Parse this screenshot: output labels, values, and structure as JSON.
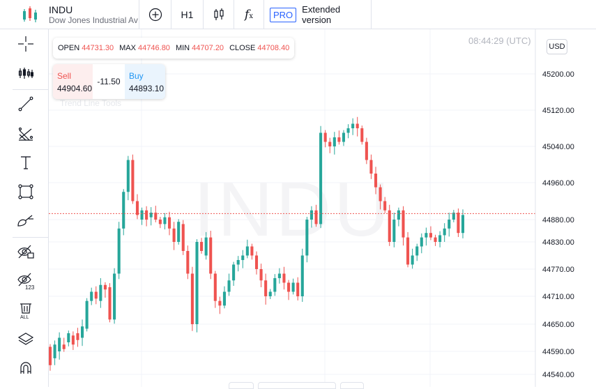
{
  "header": {
    "ticker": "INDU",
    "description": "Dow Jones Industrial Average",
    "timeframe": "H1",
    "pro_badge": "PRO",
    "extended_label": "Extended version"
  },
  "ohlc": {
    "open_label": "OPEN",
    "open": "44731.30",
    "max_label": "MAX",
    "max": "44746.80",
    "min_label": "MIN",
    "min": "44707.20",
    "close_label": "CLOSE",
    "close": "44708.40"
  },
  "trade": {
    "sell_label": "Sell",
    "sell_value": "44904.60",
    "spread": "-11.50",
    "buy_label": "Buy",
    "buy_value": "44893.10"
  },
  "overlay_text": "Trend Line Tools",
  "clock": "08:44:29 (UTC)",
  "currency": "USD",
  "watermark": "INDU",
  "colors": {
    "up": "#26a69a",
    "down": "#ef5350",
    "grid": "#f0f3fa",
    "current_line": "#ef5350"
  },
  "tools": [
    "crosshair-icon",
    "indicators-icon",
    "trend-line-icon",
    "fib-icon",
    "text-icon",
    "rectangle-icon",
    "brush-icon",
    "hide-drawings-icon",
    "hide-indicators-icon",
    "delete-all-icon",
    "layers-icon",
    "magnet-icon"
  ],
  "chart_data": {
    "type": "candlestick",
    "y_ticks": [
      "44540.00",
      "44590.00",
      "44650.00",
      "44710.00",
      "44770.00",
      "44830.00",
      "44880.00",
      "44960.00",
      "45040.00",
      "45120.00",
      "45200.00"
    ],
    "ylim": [
      44535,
      45248
    ],
    "current_price": 44893,
    "candles": [
      [
        44600,
        44560
      ],
      [
        44575,
        44605
      ],
      [
        44590,
        44620
      ],
      [
        44605,
        44595
      ],
      [
        44610,
        44630
      ],
      [
        44625,
        44605
      ],
      [
        44630,
        44615
      ],
      [
        44620,
        44645
      ],
      [
        44640,
        44700
      ],
      [
        44700,
        44720
      ],
      [
        44720,
        44705
      ],
      [
        44700,
        44735
      ],
      [
        44735,
        44725
      ],
      [
        44730,
        44660
      ],
      [
        44660,
        44760
      ],
      [
        44760,
        44860
      ],
      [
        44860,
        44940
      ],
      [
        44940,
        45010
      ],
      [
        45010,
        44920
      ],
      [
        44920,
        44890
      ],
      [
        44880,
        44900
      ],
      [
        44900,
        44880
      ],
      [
        44885,
        44895
      ],
      [
        44895,
        44880
      ],
      [
        44880,
        44870
      ],
      [
        44870,
        44885
      ],
      [
        44885,
        44860
      ],
      [
        44860,
        44830
      ],
      [
        44830,
        44875
      ],
      [
        44870,
        44810
      ],
      [
        44810,
        44760
      ],
      [
        44760,
        44650
      ],
      [
        44650,
        44830
      ],
      [
        44830,
        44810
      ],
      [
        44800,
        44840
      ],
      [
        44840,
        44760
      ],
      [
        44760,
        44700
      ],
      [
        44700,
        44690
      ],
      [
        44690,
        44720
      ],
      [
        44720,
        44745
      ],
      [
        44745,
        44780
      ],
      [
        44780,
        44790
      ],
      [
        44790,
        44800
      ],
      [
        44800,
        44820
      ],
      [
        44820,
        44800
      ],
      [
        44800,
        44770
      ],
      [
        44770,
        44745
      ],
      [
        44745,
        44710
      ],
      [
        44710,
        44720
      ],
      [
        44720,
        44750
      ],
      [
        44750,
        44760
      ],
      [
        44760,
        44740
      ],
      [
        44740,
        44720
      ],
      [
        44720,
        44740
      ],
      [
        44740,
        44710
      ],
      [
        44710,
        44800
      ],
      [
        44800,
        44880
      ],
      [
        44880,
        44900
      ],
      [
        44900,
        44870
      ],
      [
        44870,
        45070
      ],
      [
        45070,
        45050
      ],
      [
        45050,
        45040
      ],
      [
        45040,
        45060
      ],
      [
        45060,
        45050
      ],
      [
        45050,
        45070
      ],
      [
        45070,
        45080
      ],
      [
        45080,
        45090
      ],
      [
        45090,
        45080
      ],
      [
        45080,
        45050
      ],
      [
        45050,
        45010
      ],
      [
        45010,
        44980
      ],
      [
        44980,
        44950
      ],
      [
        44950,
        44920
      ],
      [
        44920,
        44900
      ],
      [
        44900,
        44830
      ],
      [
        44830,
        44880
      ],
      [
        44880,
        44900
      ],
      [
        44900,
        44840
      ],
      [
        44840,
        44780
      ],
      [
        44780,
        44800
      ],
      [
        44800,
        44820
      ],
      [
        44820,
        44840
      ],
      [
        44840,
        44850
      ],
      [
        44850,
        44840
      ],
      [
        44840,
        44830
      ],
      [
        44830,
        44845
      ],
      [
        44845,
        44860
      ],
      [
        44860,
        44880
      ],
      [
        44880,
        44895
      ],
      [
        44895,
        44850
      ],
      [
        44850,
        44890
      ]
    ]
  }
}
